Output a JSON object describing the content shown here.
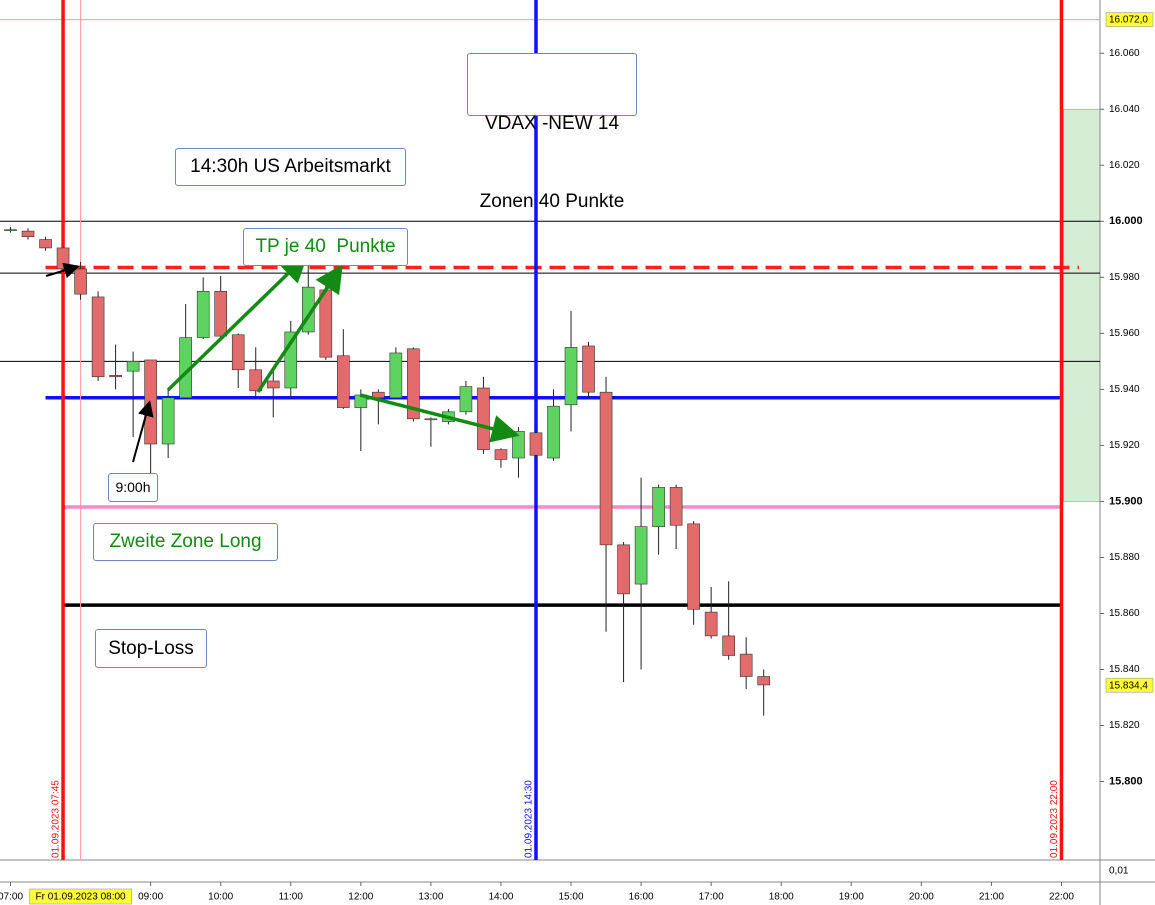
{
  "chart_data": {
    "type": "candlestick",
    "x": [
      "07:00",
      "07:15",
      "07:30",
      "07:45",
      "08:00",
      "08:15",
      "08:30",
      "08:45",
      "09:00",
      "09:15",
      "09:30",
      "09:45",
      "10:00",
      "10:15",
      "10:30",
      "10:45",
      "11:00",
      "11:15",
      "11:30",
      "11:45",
      "12:00",
      "12:15",
      "12:30",
      "12:45",
      "13:00",
      "13:15",
      "13:30",
      "13:45",
      "14:00",
      "14:15",
      "14:30",
      "14:45",
      "15:00",
      "15:15",
      "15:30",
      "15:45",
      "16:00",
      "16:15",
      "16:30",
      "16:45",
      "17:00",
      "17:15",
      "17:30",
      "17:45"
    ],
    "open": [
      15997,
      15996.5,
      15993.5,
      15990.5,
      15983,
      15973,
      15945,
      15946.5,
      15950.5,
      15920.5,
      15937,
      15958.5,
      15975,
      15959.5,
      15947,
      15943,
      15940.5,
      15960.5,
      15975.5,
      15952,
      15933.5,
      15939,
      15937,
      15954.5,
      15929.5,
      15928.5,
      15932,
      15940.5,
      15918.5,
      15915.5,
      15924.5,
      15915.5,
      15934.5,
      15955.5,
      15939,
      15884.5,
      15870.5,
      15891,
      15905,
      15892,
      15860.5,
      15852,
      15845.5,
      15837.5
    ],
    "high": [
      15998,
      15997.5,
      15994.5,
      15990.5,
      15985.5,
      15975,
      15956,
      15953.5,
      15950.5,
      15940,
      15970.5,
      15980,
      15980.5,
      15960,
      15955,
      15947,
      15964.5,
      15986.5,
      15979.5,
      15961.5,
      15940,
      15940,
      15955,
      15955,
      15930,
      15933,
      15943,
      15944.5,
      15919,
      15926.5,
      15925.5,
      15940,
      15968,
      15957,
      15944.5,
      15885.5,
      15908.5,
      15906,
      15906,
      15893,
      15869.5,
      15871.5,
      15851.5,
      15840
    ],
    "low": [
      15996,
      15993.5,
      15989.5,
      15982,
      15972,
      15943,
      15940,
      15923,
      15908.5,
      15915.5,
      15936.5,
      15958,
      15958.5,
      15940.5,
      15937,
      15930,
      15937,
      15959.5,
      15950.5,
      15933,
      15918,
      15927.5,
      15936.5,
      15928.5,
      15919.5,
      15927.5,
      15931,
      15917,
      15912,
      15908.5,
      15915,
      15914.5,
      15925,
      15937,
      15853.5,
      15835.5,
      15840,
      15881,
      15883,
      15856,
      15851,
      15843.5,
      15833,
      15823.5
    ],
    "close": [
      15997,
      15994.5,
      15990.5,
      15983,
      15974,
      15944.5,
      15944.5,
      15950,
      15920.5,
      15937,
      15958.5,
      15975,
      15959,
      15947,
      15939.5,
      15940.5,
      15960.5,
      15976.5,
      15951.5,
      15933.5,
      15938,
      15937,
      15953,
      15929.5,
      15929.5,
      15932,
      15941,
      15918.5,
      15915,
      15925,
      15916.5,
      15934,
      15955,
      15939,
      15884.5,
      15867,
      15891,
      15905,
      15891.5,
      15861.5,
      15852,
      15845,
      15837.5,
      15834.5
    ],
    "up_color": "#5fd35f",
    "down_color": "#e26b6b",
    "xlim": [
      "06:51",
      "22:33"
    ],
    "xticks": [
      "07:00",
      "09:00",
      "10:00",
      "11:00",
      "12:00",
      "13:00",
      "14:00",
      "15:00",
      "16:00",
      "17:00",
      "18:00",
      "19:00",
      "20:00",
      "21:00",
      "22:00"
    ],
    "ylim": [
      15772,
      16079
    ],
    "yticks": [
      {
        "value": 16060,
        "label": "16.060"
      },
      {
        "value": 16040,
        "label": "16.040"
      },
      {
        "value": 16020,
        "label": "16.020"
      },
      {
        "value": 16000,
        "label": "16.000"
      },
      {
        "value": 15980,
        "label": "15.980"
      },
      {
        "value": 15960,
        "label": "15.960"
      },
      {
        "value": 15940,
        "label": "15.940"
      },
      {
        "value": 15920,
        "label": "15.920"
      },
      {
        "value": 15900,
        "label": "15.900"
      },
      {
        "value": 15880,
        "label": "15.880"
      },
      {
        "value": 15860,
        "label": "15.860"
      },
      {
        "value": 15840,
        "label": "15.840"
      },
      {
        "value": 15820,
        "label": "15.820"
      },
      {
        "value": 15800,
        "label": "15.800"
      }
    ],
    "hlines": [
      {
        "value": 16072,
        "color": "#ff9a9a",
        "width": 1
      },
      {
        "value": 16000,
        "color": "#000000",
        "width": 1
      },
      {
        "value": 15981.5,
        "color": "#000000",
        "width": 1
      },
      {
        "value": 15950,
        "color": "#000000",
        "width": 1
      },
      {
        "value": 15983.5,
        "color": "#ff2020",
        "width": 3.5,
        "dash": true,
        "from": "07:30",
        "to": "22:15"
      },
      {
        "value": 15937,
        "color": "#1010ff",
        "width": 3.5,
        "from": "07:30",
        "to": "22:00"
      },
      {
        "value": 15898,
        "color": "#ff88c8",
        "width": 3.5,
        "from": "07:45",
        "to": "22:00"
      },
      {
        "value": 15863,
        "color": "#000000",
        "width": 3.5,
        "from": "07:45",
        "to": "22:00"
      }
    ],
    "vlines": [
      {
        "x": "08:00",
        "color": "#ff9a9a",
        "width": 1
      },
      {
        "x": "07:45",
        "color": "#ff1010",
        "width": 3.5,
        "label": "01.09.2023 07:45"
      },
      {
        "x": "14:30",
        "color": "#1010ff",
        "width": 3.5,
        "label": "01.09.2023 14:30"
      },
      {
        "x": "22:00",
        "color": "#ff1010",
        "width": 3.5,
        "label": "01.09.2023 22:00"
      }
    ],
    "zone": {
      "ylim": [
        15900,
        16040
      ],
      "from": "22:00",
      "color": "#d5ecd5"
    },
    "price_tags": [
      {
        "value": 16072,
        "label": "16.072,0"
      },
      {
        "value": 15834.4,
        "label": "15.834,4"
      }
    ],
    "cursor_label": {
      "x": "08:00",
      "label": "Fr 01.09.2023 08:00"
    },
    "indicator_tick": "0,01",
    "annotations": {
      "vdax": [
        "VDAX -NEW 14",
        "Zonen 40 Punkte"
      ],
      "event": "14:30h US Arbeitsmarkt",
      "tp": "TP je 40  Punkte",
      "time": "9:00h",
      "zone2": "Zweite Zone Long",
      "stop": "Stop-Loss"
    }
  }
}
